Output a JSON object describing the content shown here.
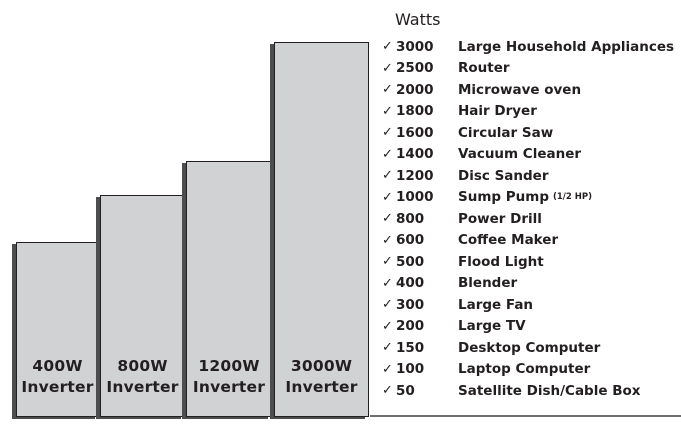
{
  "legend": {
    "title": "Watts",
    "check_glyph": "✓"
  },
  "bars": [
    {
      "label_top": "400W",
      "label_bottom": "Inverter"
    },
    {
      "label_top": "800W",
      "label_bottom": "Inverter"
    },
    {
      "label_top": "1200W",
      "label_bottom": "Inverter"
    },
    {
      "label_top": "3000W",
      "label_bottom": "Inverter"
    }
  ],
  "appliances": [
    {
      "watts": "3000",
      "name": "Large Household Appliances",
      "note": ""
    },
    {
      "watts": "2500",
      "name": "Router",
      "note": ""
    },
    {
      "watts": "2000",
      "name": "Microwave oven",
      "note": ""
    },
    {
      "watts": "1800",
      "name": "Hair Dryer",
      "note": ""
    },
    {
      "watts": "1600",
      "name": "Circular Saw",
      "note": ""
    },
    {
      "watts": "1400",
      "name": "Vacuum Cleaner",
      "note": ""
    },
    {
      "watts": "1200",
      "name": "Disc Sander",
      "note": ""
    },
    {
      "watts": "1000",
      "name": "Sump Pump",
      "note": "(1/2 HP)"
    },
    {
      "watts": "800",
      "name": "Power Drill",
      "note": ""
    },
    {
      "watts": "600",
      "name": "Coffee Maker",
      "note": ""
    },
    {
      "watts": "500",
      "name": "Flood Light",
      "note": ""
    },
    {
      "watts": "400",
      "name": "Blender",
      "note": ""
    },
    {
      "watts": "300",
      "name": "Large Fan",
      "note": ""
    },
    {
      "watts": "200",
      "name": "Large TV",
      "note": ""
    },
    {
      "watts": "150",
      "name": "Desktop Computer",
      "note": ""
    },
    {
      "watts": "100",
      "name": "Laptop Computer",
      "note": ""
    },
    {
      "watts": "50",
      "name": "Satellite Dish/Cable Box",
      "note": ""
    }
  ],
  "colors": {
    "bar_fill": "#d1d2d4",
    "bar_border": "#231f20",
    "bar_shadow": "#4d4d4f",
    "text": "#231f20"
  },
  "chart_data": {
    "type": "bar",
    "title": "",
    "categories": [
      "400W Inverter",
      "800W Inverter",
      "1200W Inverter",
      "3000W Inverter"
    ],
    "values": [
      400,
      800,
      1200,
      3000
    ],
    "xlabel": "",
    "ylabel": "Watts",
    "legend_position": "right",
    "grid": false,
    "side_table": {
      "header": "Watts",
      "rows": [
        [
          "3000",
          "Large Household Appliances"
        ],
        [
          "2500",
          "Router"
        ],
        [
          "2000",
          "Microwave oven"
        ],
        [
          "1800",
          "Hair Dryer"
        ],
        [
          "1600",
          "Circular Saw"
        ],
        [
          "1400",
          "Vacuum Cleaner"
        ],
        [
          "1200",
          "Disc Sander"
        ],
        [
          "1000",
          "Sump Pump (1/2 HP)"
        ],
        [
          "800",
          "Power Drill"
        ],
        [
          "600",
          "Coffee Maker"
        ],
        [
          "500",
          "Flood Light"
        ],
        [
          "400",
          "Blender"
        ],
        [
          "300",
          "Large Fan"
        ],
        [
          "200",
          "Large TV"
        ],
        [
          "150",
          "Desktop Computer"
        ],
        [
          "100",
          "Laptop Computer"
        ],
        [
          "50",
          "Satellite Dish/Cable Box"
        ]
      ]
    }
  }
}
